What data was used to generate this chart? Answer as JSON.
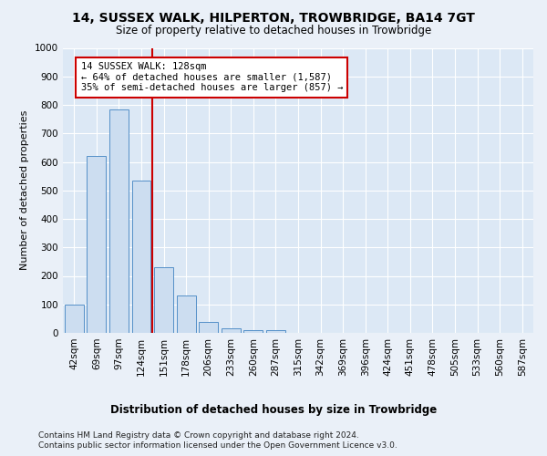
{
  "title": "14, SUSSEX WALK, HILPERTON, TROWBRIDGE, BA14 7GT",
  "subtitle": "Size of property relative to detached houses in Trowbridge",
  "xlabel": "Distribution of detached houses by size in Trowbridge",
  "ylabel": "Number of detached properties",
  "footer_line1": "Contains HM Land Registry data © Crown copyright and database right 2024.",
  "footer_line2": "Contains public sector information licensed under the Open Government Licence v3.0.",
  "bar_labels": [
    "42sqm",
    "69sqm",
    "97sqm",
    "124sqm",
    "151sqm",
    "178sqm",
    "206sqm",
    "233sqm",
    "260sqm",
    "287sqm",
    "315sqm",
    "342sqm",
    "369sqm",
    "396sqm",
    "424sqm",
    "451sqm",
    "478sqm",
    "505sqm",
    "533sqm",
    "560sqm",
    "587sqm"
  ],
  "bar_values": [
    100,
    620,
    785,
    535,
    230,
    130,
    40,
    15,
    10,
    10,
    0,
    0,
    0,
    0,
    0,
    0,
    0,
    0,
    0,
    0,
    0
  ],
  "bar_color": "#ccddf0",
  "bar_edge_color": "#5590c8",
  "vline_x": 3.5,
  "vline_color": "#cc0000",
  "annotation_text": "14 SUSSEX WALK: 128sqm\n← 64% of detached houses are smaller (1,587)\n35% of semi-detached houses are larger (857) →",
  "annotation_box_color": "#ffffff",
  "annotation_box_edge": "#cc0000",
  "ylim": [
    0,
    1000
  ],
  "yticks": [
    0,
    100,
    200,
    300,
    400,
    500,
    600,
    700,
    800,
    900,
    1000
  ],
  "bg_color": "#dce8f5",
  "fig_bg_color": "#eaf0f8",
  "grid_color": "#ffffff",
  "title_fontsize": 10,
  "subtitle_fontsize": 8.5,
  "ylabel_fontsize": 8,
  "tick_fontsize": 7.5,
  "annotation_fontsize": 7.5,
  "xlabel_fontsize": 8.5,
  "footer_fontsize": 6.5
}
